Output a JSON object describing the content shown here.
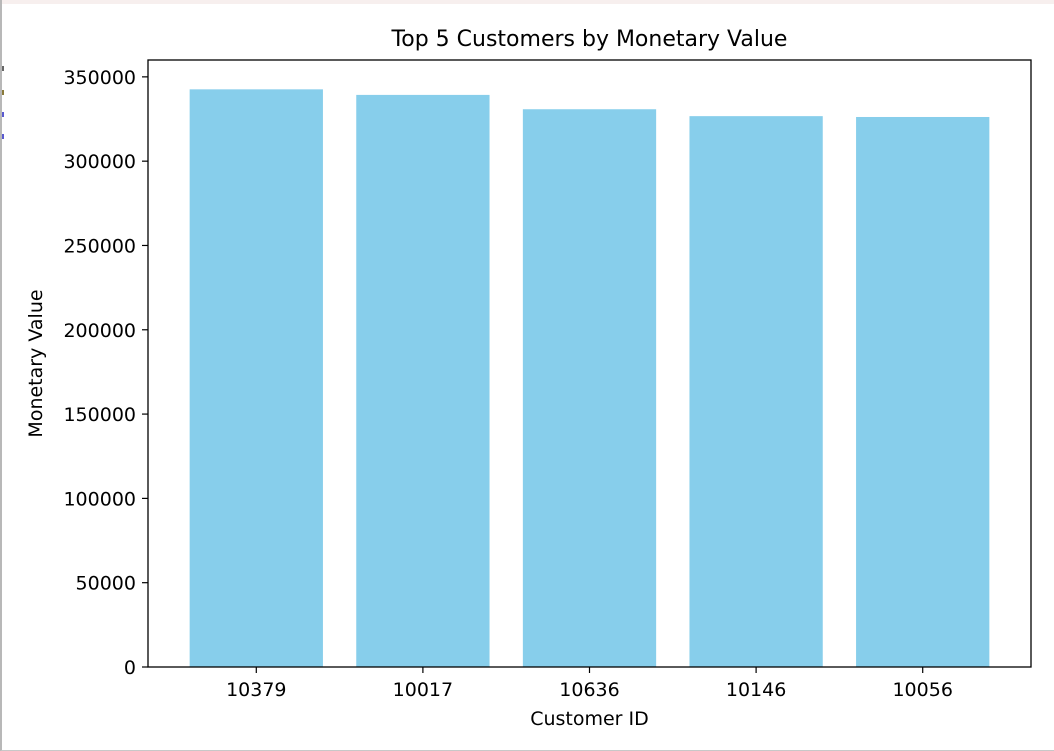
{
  "colors": {
    "bar": "#87CEEB",
    "axis": "#000000",
    "background": "#ffffff"
  },
  "chart_data": {
    "type": "bar",
    "title": "Top 5 Customers by Monetary Value",
    "xlabel": "Customer ID",
    "ylabel": "Monetary Value",
    "categories": [
      "10379",
      "10017",
      "10636",
      "10146",
      "10056"
    ],
    "values": [
      342600,
      339300,
      330800,
      326700,
      326200
    ],
    "ylim": [
      0,
      360000
    ],
    "yticks": [
      0,
      50000,
      100000,
      150000,
      200000,
      250000,
      300000,
      350000
    ],
    "grid": false,
    "legend": "none"
  }
}
